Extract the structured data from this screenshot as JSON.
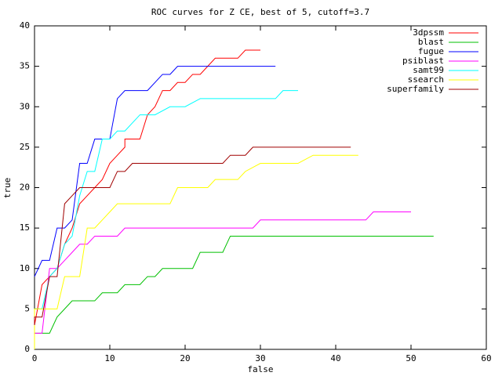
{
  "chart_data": {
    "type": "line",
    "title": "ROC curves for Z CE, best of 5, cutoff=3.7",
    "x_label": "false",
    "y_label": "true",
    "xlim": [
      0,
      60
    ],
    "ylim": [
      0,
      40
    ],
    "xticks": [
      0,
      10,
      20,
      30,
      40,
      50,
      60
    ],
    "yticks": [
      0,
      5,
      10,
      15,
      20,
      25,
      30,
      35,
      40
    ],
    "legend": "top-right",
    "series": [
      {
        "name": "3dpssm",
        "color": "#ff0000",
        "x": [
          0,
          1,
          2,
          3,
          4,
          5,
          6,
          7,
          8,
          9,
          10,
          11,
          12,
          12,
          14,
          15,
          16,
          17,
          18,
          19,
          20,
          21,
          22,
          24,
          27,
          28,
          30
        ],
        "values": [
          3,
          8,
          9,
          10,
          13,
          15,
          18,
          19,
          20,
          21,
          23,
          24,
          25,
          26,
          26,
          29,
          30,
          32,
          32,
          33,
          33,
          34,
          34,
          36,
          36,
          37,
          37
        ]
      },
      {
        "name": "blast",
        "color": "#00c000",
        "x": [
          0,
          0,
          2,
          3,
          4,
          5,
          8,
          9,
          11,
          12,
          14,
          15,
          16,
          17,
          21,
          22,
          25,
          26,
          53
        ],
        "values": [
          0,
          2,
          2,
          4,
          5,
          6,
          6,
          7,
          7,
          8,
          8,
          9,
          9,
          10,
          10,
          12,
          12,
          14,
          14
        ]
      },
      {
        "name": "fugue",
        "color": "#0000ff",
        "x": [
          0,
          1,
          2,
          3,
          4,
          5,
          6,
          7,
          8,
          10,
          11,
          12,
          15,
          17,
          18,
          19,
          32
        ],
        "values": [
          9,
          11,
          11,
          15,
          15,
          16,
          23,
          23,
          26,
          26,
          31,
          32,
          32,
          34,
          34,
          35,
          35
        ]
      },
      {
        "name": "psiblast",
        "color": "#ff00ff",
        "x": [
          0,
          1,
          2,
          3,
          4,
          5,
          6,
          7,
          8,
          11,
          12,
          29,
          30,
          44,
          45,
          50
        ],
        "values": [
          2,
          2,
          10,
          10,
          11,
          12,
          13,
          13,
          14,
          14,
          15,
          15,
          16,
          16,
          17,
          17
        ]
      },
      {
        "name": "samt99",
        "color": "#00ffff",
        "x": [
          0,
          0,
          1,
          2,
          3,
          4,
          5,
          6,
          7,
          8,
          9,
          10,
          11,
          12,
          14,
          16,
          18,
          20,
          22,
          32,
          33,
          35
        ],
        "values": [
          1,
          5,
          5,
          9,
          10,
          13,
          14,
          19,
          22,
          22,
          26,
          26,
          27,
          27,
          29,
          29,
          30,
          30,
          31,
          31,
          32,
          32
        ]
      },
      {
        "name": "ssearch",
        "color": "#ffff00",
        "x": [
          0,
          0,
          3,
          4,
          6,
          7,
          8,
          9,
          10,
          11,
          18,
          19,
          23,
          24,
          27,
          28,
          30,
          35,
          37,
          43
        ],
        "values": [
          0,
          5,
          5,
          9,
          9,
          15,
          15,
          16,
          17,
          18,
          18,
          20,
          20,
          21,
          21,
          22,
          23,
          23,
          24,
          24
        ]
      },
      {
        "name": "superfamily",
        "color": "#a00000",
        "x": [
          0,
          0,
          1,
          2,
          3,
          4,
          5,
          6,
          10,
          11,
          12,
          13,
          25,
          26,
          28,
          29,
          42
        ],
        "values": [
          3,
          4,
          4,
          9,
          9,
          18,
          19,
          20,
          20,
          22,
          22,
          23,
          23,
          24,
          24,
          25,
          25
        ]
      }
    ]
  }
}
